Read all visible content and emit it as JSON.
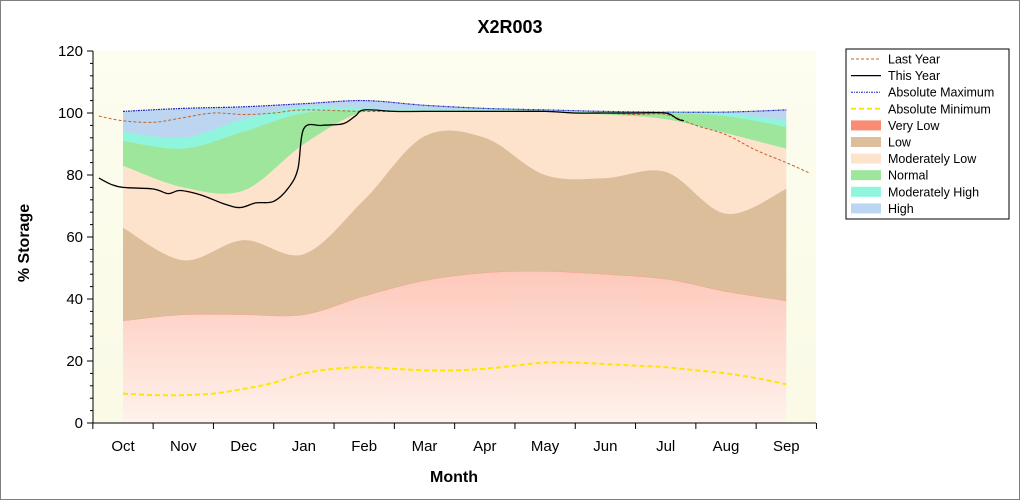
{
  "chart_data": {
    "type": "area",
    "title": "X2R003",
    "xlabel": "Month",
    "ylabel": "% Storage",
    "ylim": [
      0,
      120
    ],
    "yticks": [
      0,
      20,
      40,
      60,
      80,
      100,
      120
    ],
    "categories": [
      "Oct",
      "Nov",
      "Dec",
      "Jan",
      "Feb",
      "Mar",
      "Apr",
      "May",
      "Jun",
      "Jul",
      "Aug",
      "Sep"
    ],
    "grid": false,
    "legend_position": "right",
    "bands": [
      {
        "name": "Very Low",
        "color": "#fa8c73",
        "lower": [
          0,
          0,
          0,
          0,
          0,
          0,
          0,
          0,
          0,
          0,
          0,
          0
        ],
        "upper": [
          33,
          35,
          35,
          35,
          41,
          46,
          48.5,
          49,
          48,
          46.5,
          42.5,
          39.5
        ]
      },
      {
        "name": "Low",
        "color": "#dcbe9b",
        "lower": [
          33,
          35,
          35,
          35,
          41,
          46,
          48.5,
          49,
          48,
          46.5,
          42.5,
          39.5
        ],
        "upper": [
          63,
          52.5,
          59,
          54.5,
          72,
          92.5,
          92,
          80,
          79,
          81,
          67.5,
          75.5
        ]
      },
      {
        "name": "Moderately Low",
        "color": "#fde2cc",
        "lower": [
          63,
          52.5,
          59,
          54.5,
          72,
          92.5,
          92,
          80,
          79,
          81,
          67.5,
          75.5
        ],
        "upper": [
          83,
          76,
          75,
          90,
          100.5,
          100.5,
          100.5,
          100.5,
          99.5,
          98,
          93.5,
          88.5
        ]
      },
      {
        "name": "Normal",
        "color": "#9de69b",
        "lower": [
          83,
          76,
          75,
          90,
          100.5,
          100.5,
          100.5,
          100.5,
          99.5,
          98,
          93.5,
          88.5
        ],
        "upper": [
          91,
          88.5,
          94,
          100,
          100.8,
          100.6,
          100.6,
          100.6,
          100,
          100,
          99,
          95.5
        ]
      },
      {
        "name": "Moderately High",
        "color": "#8ff5dc",
        "lower": [
          91,
          88.5,
          94,
          100,
          100.8,
          100.6,
          100.6,
          100.6,
          100,
          100,
          99,
          95.5
        ],
        "upper": [
          94,
          92,
          98,
          102,
          101.5,
          101,
          101,
          100.8,
          100.4,
          100.2,
          100,
          97.5
        ]
      },
      {
        "name": "High",
        "color": "#bcd6f2",
        "lower": [
          94,
          92,
          98,
          102,
          101.5,
          101,
          101,
          100.8,
          100.4,
          100.2,
          100,
          97.5
        ],
        "upper": [
          100.5,
          101.5,
          102,
          103,
          104,
          102.5,
          101.5,
          101,
          100.5,
          100.3,
          100.3,
          101
        ]
      }
    ],
    "lines": [
      {
        "name": "Last Year",
        "color": "#c0642d",
        "style": "dashed",
        "x": [
          -0.4,
          0,
          0.5,
          1,
          1.5,
          2,
          2.5,
          3,
          4,
          5,
          6,
          7,
          7.5,
          8,
          8.5,
          9,
          9.5,
          10,
          10.5,
          11,
          11.4
        ],
        "y": [
          99,
          97.5,
          97,
          98.5,
          100,
          99.5,
          100,
          101,
          100.5,
          100.5,
          100.5,
          100.5,
          100,
          100,
          99.5,
          99.5,
          96,
          93,
          88,
          84,
          80.5
        ]
      },
      {
        "name": "This Year",
        "color": "#000000",
        "style": "solid",
        "x": [
          -0.4,
          -0.2,
          0,
          0.5,
          0.75,
          0.95,
          1.3,
          1.7,
          1.95,
          2.2,
          2.5,
          2.75,
          2.9,
          3,
          3.3,
          3.65,
          3.85,
          4,
          4.5,
          5,
          6,
          7,
          7.5,
          8,
          8.5,
          9,
          9.2,
          9.3
        ],
        "y": [
          79,
          77,
          76,
          75.5,
          74,
          75,
          73.5,
          70.5,
          69.5,
          71,
          71.5,
          76,
          82,
          95,
          96,
          96.5,
          99,
          101,
          100.5,
          100.5,
          100.5,
          100.5,
          100,
          100,
          100,
          100,
          98,
          97.5
        ]
      },
      {
        "name": "Absolute Maximum",
        "color": "#1f1fbf",
        "style": "dashdot",
        "x": [
          0,
          1,
          2,
          3,
          4,
          5,
          6,
          7,
          8,
          9,
          10,
          11
        ],
        "y": [
          100.5,
          101.5,
          102,
          103,
          104,
          102.5,
          101.5,
          101,
          100.5,
          100.3,
          100.3,
          101
        ]
      },
      {
        "name": "Absolute Minimum",
        "color": "#ffe600",
        "style": "dashed-thick",
        "x": [
          0,
          0.5,
          1,
          1.5,
          2,
          2.5,
          3,
          3.5,
          4,
          4.5,
          5,
          5.5,
          6,
          6.5,
          7,
          7.5,
          8,
          8.5,
          9,
          9.5,
          10,
          10.5,
          11
        ],
        "y": [
          9.5,
          9,
          9,
          9.5,
          11,
          13,
          16,
          17.5,
          18,
          17.5,
          17,
          17,
          17.5,
          18.5,
          19.5,
          19.5,
          19,
          18.5,
          18,
          17,
          16,
          14.5,
          12.5
        ]
      }
    ],
    "legend": [
      {
        "label": "Last Year",
        "kind": "line",
        "color": "#c0642d",
        "dash": "3,2",
        "width": 1
      },
      {
        "label": "This Year",
        "kind": "line",
        "color": "#000000",
        "dash": "",
        "width": 1.3
      },
      {
        "label": "Absolute Maximum",
        "kind": "line",
        "color": "#1f1fbf",
        "dash": "2,1,1,1",
        "width": 1
      },
      {
        "label": "Absolute Minimum",
        "kind": "line",
        "color": "#ffe600",
        "dash": "5,3",
        "width": 2
      },
      {
        "label": "Very Low",
        "kind": "swatch",
        "color": "#fa8c73"
      },
      {
        "label": "Low",
        "kind": "swatch",
        "color": "#dcbe9b"
      },
      {
        "label": "Moderately Low",
        "kind": "swatch",
        "color": "#fde2cc"
      },
      {
        "label": "Normal",
        "kind": "swatch",
        "color": "#9de69b"
      },
      {
        "label": "Moderately High",
        "kind": "swatch",
        "color": "#8ff5dc"
      },
      {
        "label": "High",
        "kind": "swatch",
        "color": "#bcd6f2"
      }
    ],
    "colors": {
      "plot_background": "#fdfdf0",
      "band_gradient_bottom": "#fff2ec"
    }
  }
}
